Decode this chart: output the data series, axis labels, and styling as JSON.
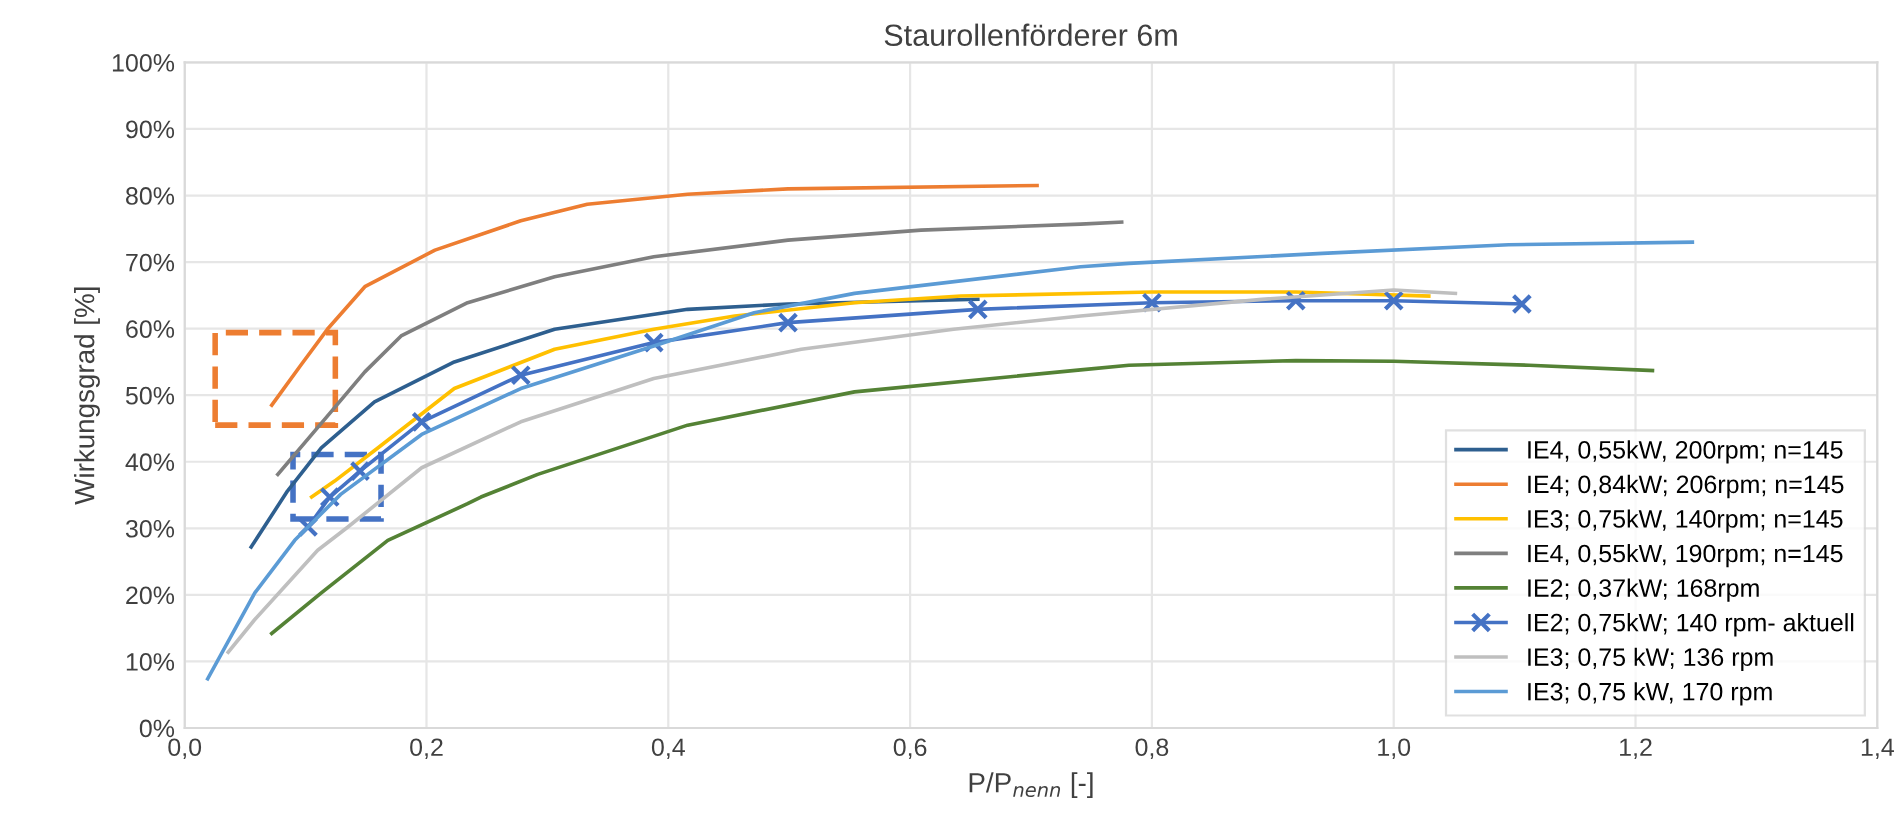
{
  "chart_data": {
    "type": "line",
    "title": "Staurollenförderer 6m",
    "xlabel": "P/P$_{nenn}$ [-]",
    "ylabel": "Wirkungsgrad [%]",
    "xlim": [
      0,
      1.4
    ],
    "ylim": [
      0,
      100
    ],
    "xticks": [
      {
        "value": 0,
        "label": "0,0"
      },
      {
        "value": 0.2,
        "label": "0,2"
      },
      {
        "value": 0.4,
        "label": "0,4"
      },
      {
        "value": 0.6,
        "label": "0,6"
      },
      {
        "value": 0.8,
        "label": "0,8"
      },
      {
        "value": 1.0,
        "label": "1,0"
      },
      {
        "value": 1.2,
        "label": "1,2"
      },
      {
        "value": 1.4,
        "label": "1,4"
      }
    ],
    "yticks": [
      {
        "value": 0,
        "label": "0%"
      },
      {
        "value": 10,
        "label": "10%"
      },
      {
        "value": 20,
        "label": "20%"
      },
      {
        "value": 30,
        "label": "30%"
      },
      {
        "value": 40,
        "label": "40%"
      },
      {
        "value": 50,
        "label": "50%"
      },
      {
        "value": 60,
        "label": "60%"
      },
      {
        "value": 70,
        "label": "70%"
      },
      {
        "value": 80,
        "label": "80%"
      },
      {
        "value": 90,
        "label": "90%"
      },
      {
        "value": 100,
        "label": "100%"
      }
    ],
    "grid": true,
    "legend": "bottom right",
    "line_style": "solid",
    "series": [
      {
        "name": "IE4, 0,55kW, 200rpm; n=145",
        "color": "#2e5f8f",
        "marker": "none",
        "x": [
          0.055,
          0.085,
          0.113,
          0.157,
          0.223,
          0.306,
          0.416,
          0.499,
          0.656
        ],
        "values": [
          27.2,
          35.6,
          42.1,
          49.0,
          55.0,
          59.9,
          62.9,
          63.7,
          64.4
        ]
      },
      {
        "name": "IE4; 0,84kW; 206rpm; n=145",
        "color": "#ed7d31",
        "marker": "none",
        "x": [
          0.072,
          0.08,
          0.096,
          0.118,
          0.149,
          0.207,
          0.278,
          0.333,
          0.416,
          0.499,
          0.705
        ],
        "values": [
          48.5,
          50.5,
          54.5,
          59.9,
          66.3,
          71.8,
          76.2,
          78.7,
          80.2,
          81.0,
          81.5
        ]
      },
      {
        "name": "IE3; 0,75kW, 140rpm; n=145",
        "color": "#ffc000",
        "marker": "none",
        "x": [
          0.105,
          0.124,
          0.16,
          0.223,
          0.306,
          0.388,
          0.455,
          0.554,
          0.642,
          0.8,
          0.919,
          1.029
        ],
        "values": [
          34.7,
          37.1,
          42.1,
          51.0,
          56.9,
          59.9,
          61.9,
          63.9,
          64.9,
          65.5,
          65.5,
          64.9
        ]
      },
      {
        "name": "IE4, 0,55kW, 190rpm; n=145",
        "color": "#7f7f7f",
        "marker": "none",
        "x": [
          0.077,
          0.121,
          0.149,
          0.179,
          0.234,
          0.306,
          0.388,
          0.499,
          0.609,
          0.741,
          0.775
        ],
        "values": [
          38.1,
          47.5,
          53.5,
          58.9,
          63.9,
          67.8,
          70.8,
          73.3,
          74.8,
          75.7,
          76.0
        ]
      },
      {
        "name": "IE2; 0,37kW; 168rpm",
        "color": "#548235",
        "marker": "none",
        "x": [
          0.072,
          0.113,
          0.168,
          0.234,
          0.245,
          0.292,
          0.416,
          0.554,
          0.741,
          0.781,
          0.919,
          1.0,
          1.112,
          1.214
        ],
        "values": [
          14.2,
          20.3,
          28.2,
          33.7,
          34.7,
          38.1,
          45.5,
          50.5,
          53.8,
          54.5,
          55.2,
          55.1,
          54.5,
          53.7
        ]
      },
      {
        "name": "IE2; 0,75kW; 140 rpm- aktuell",
        "color": "#4472c4",
        "marker": "cross",
        "x": [
          0.102,
          0.12,
          0.145,
          0.196,
          0.278,
          0.388,
          0.499,
          0.656,
          0.8,
          0.919,
          1.0,
          1.106
        ],
        "values": [
          30.2,
          34.7,
          38.6,
          46.0,
          53.0,
          57.9,
          60.9,
          62.9,
          63.9,
          64.2,
          64.2,
          63.7
        ]
      },
      {
        "name": "IE3; 0,75 kW; 136 rpm",
        "color": "#bfbfbf",
        "marker": "none",
        "x": [
          0.036,
          0.058,
          0.11,
          0.135,
          0.196,
          0.278,
          0.388,
          0.51,
          0.636,
          0.741,
          0.891,
          1.0,
          1.051
        ],
        "values": [
          11.4,
          16.3,
          26.7,
          30.2,
          39.1,
          46.0,
          52.5,
          56.9,
          59.9,
          61.9,
          64.4,
          65.8,
          65.3
        ]
      },
      {
        "name": "IE3; 0,75 kW, 170 rpm",
        "color": "#5b9bd5",
        "marker": "none",
        "x": [
          0.019,
          0.058,
          0.091,
          0.129,
          0.196,
          0.278,
          0.388,
          0.471,
          0.554,
          0.741,
          0.781,
          0.941,
          1.095,
          1.247
        ],
        "values": [
          7.4,
          20.3,
          28.2,
          35.1,
          44.1,
          51.0,
          57.4,
          62.4,
          65.3,
          69.3,
          69.8,
          71.3,
          72.6,
          73.0
        ]
      }
    ]
  }
}
